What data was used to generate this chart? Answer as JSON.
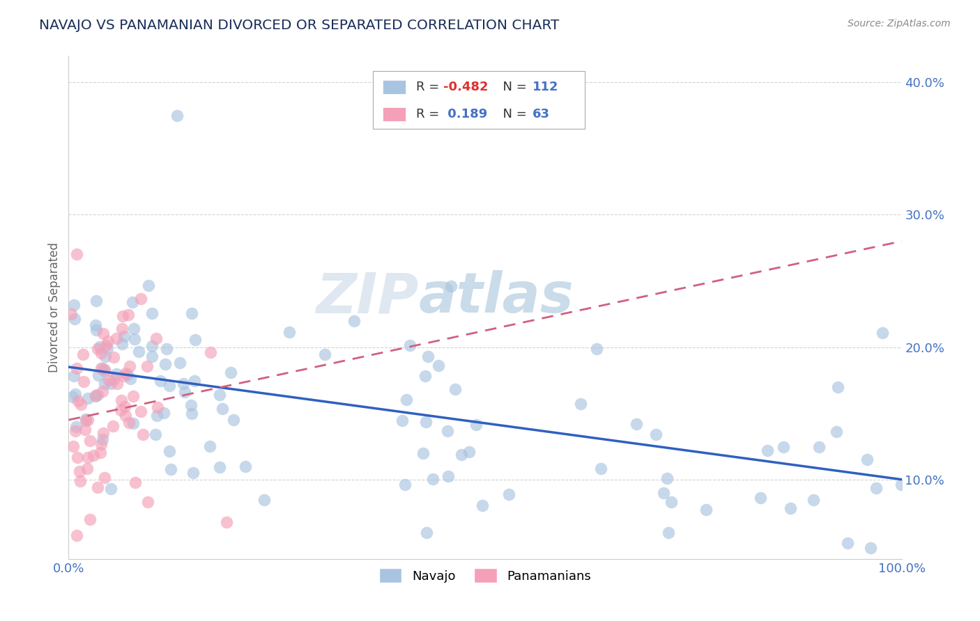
{
  "title": "NAVAJO VS PANAMANIAN DIVORCED OR SEPARATED CORRELATION CHART",
  "source": "Source: ZipAtlas.com",
  "ylabel": "Divorced or Separated",
  "legend_navajo": "Navajo",
  "legend_panamanians": "Panamanians",
  "navajo_R": "-0.482",
  "navajo_N": "112",
  "panamanians_R": "0.189",
  "panamanians_N": "63",
  "navajo_color": "#a8c4e0",
  "navajo_line_color": "#3060c0",
  "panamanians_color": "#f4a0b8",
  "panamanians_line_color": "#d06080",
  "watermark_zip": "ZIP",
  "watermark_atlas": "atlas",
  "background_color": "#ffffff",
  "grid_color": "#c8c8c8",
  "title_color": "#1a2e5a",
  "axis_label_color": "#4472c4",
  "tick_label_color": "#4472c4",
  "ylim": [
    0.04,
    0.42
  ],
  "xlim": [
    0.0,
    1.0
  ],
  "navajo_intercept": 0.185,
  "navajo_slope": -0.085,
  "panamanians_intercept": 0.145,
  "panamanians_slope": 0.135
}
